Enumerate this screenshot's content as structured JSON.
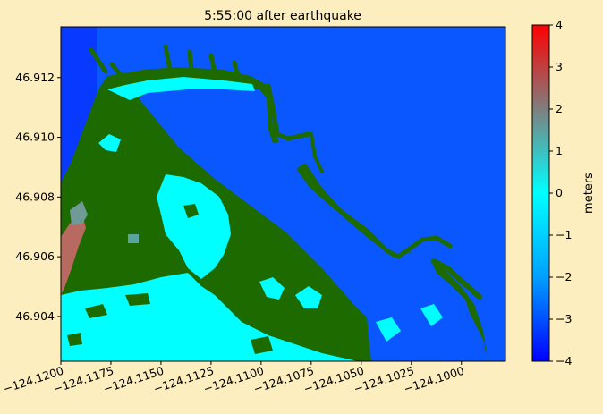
{
  "chart_data": {
    "type": "heatmap",
    "title": "5:55:00 after earthquake",
    "x_ticks": [
      "−124.1200",
      "−124.1175",
      "−124.1150",
      "−124.1125",
      "−124.1100",
      "−124.1075",
      "−124.1050",
      "−124.1025",
      "−124.1000"
    ],
    "x_tick_values": [
      -124.12,
      -124.1175,
      -124.115,
      -124.1125,
      -124.11,
      -124.1075,
      -124.105,
      -124.1025,
      -124.1
    ],
    "xlim": [
      -124.12,
      -124.0978
    ],
    "y_ticks": [
      "46.904",
      "46.906",
      "46.908",
      "46.910",
      "46.912"
    ],
    "y_tick_values": [
      46.904,
      46.906,
      46.908,
      46.91,
      46.912
    ],
    "ylim": [
      46.9025,
      46.9137
    ],
    "colorbar": {
      "label": "meters",
      "range": [
        -4,
        4
      ],
      "ticks": [
        "4",
        "3",
        "2",
        "1",
        "0",
        "−1",
        "−2",
        "−3",
        "−4"
      ],
      "tick_values": [
        4,
        3,
        2,
        1,
        0,
        -1,
        -2,
        -3,
        -4
      ],
      "colors": [
        "#0000ff",
        "#00a0ff",
        "#00ffff",
        "#7f7f7f",
        "#ff0000"
      ]
    },
    "land_color": "#1d6a00",
    "water_color": "#0a57ff",
    "flooded_color": "#00ffff"
  }
}
